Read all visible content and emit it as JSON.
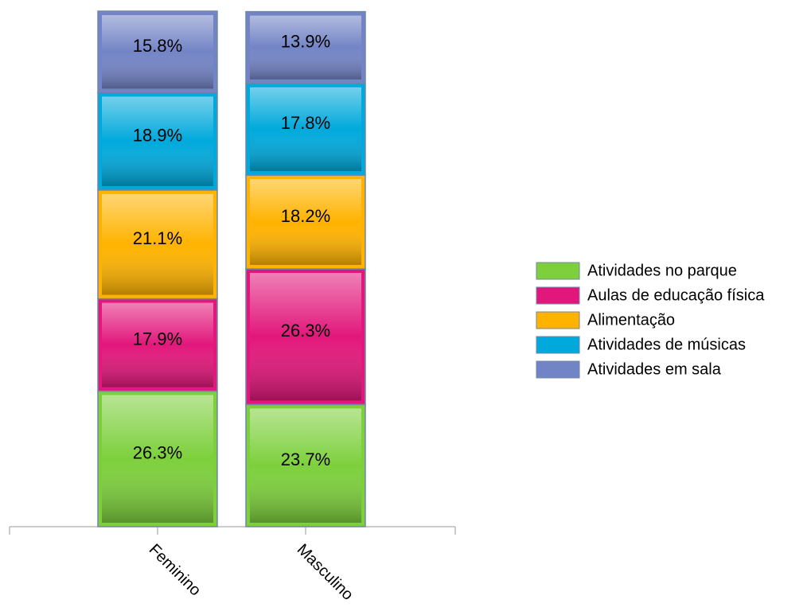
{
  "chart_data": {
    "type": "stacked_bar",
    "categories": [
      "Feminino",
      "Masculino"
    ],
    "series": [
      {
        "name": "Atividades no parque",
        "color": "#7dd03c",
        "values": [
          26.3,
          23.7
        ],
        "value_labels": [
          "26.3%",
          "23.7%"
        ]
      },
      {
        "name": "Aulas de educação física",
        "color": "#e2177b",
        "values": [
          17.9,
          26.3
        ],
        "value_labels": [
          "17.9%",
          "26.3%"
        ]
      },
      {
        "name": "Alimentação",
        "color": "#ffb300",
        "values": [
          21.1,
          18.2
        ],
        "value_labels": [
          "21.1%",
          "18.2%"
        ]
      },
      {
        "name": "Atividades de músicas",
        "color": "#00a9dc",
        "values": [
          18.9,
          17.8
        ],
        "value_labels": [
          "18.9%",
          "17.8%"
        ]
      },
      {
        "name": "Atividades em sala",
        "color": "#7384c6",
        "values": [
          15.8,
          13.9
        ],
        "value_labels": [
          "15.8%",
          "13.9%"
        ]
      }
    ],
    "ylim": [
      0,
      100
    ],
    "legend": "right"
  }
}
